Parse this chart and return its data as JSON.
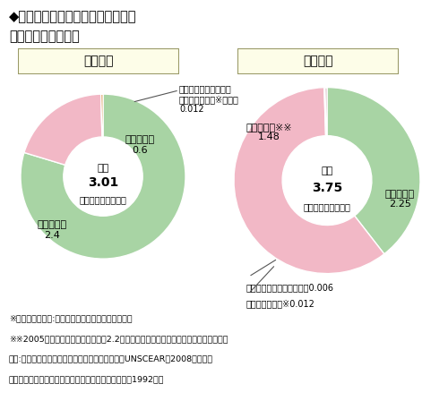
{
  "title_line1": "◆自然及び人工放射線源から受ける",
  "title_line2": "一人当たり年間線量",
  "world_label": "世界平均",
  "japan_label": "日本平均",
  "world_total_label": "合計",
  "japan_total_label": "合計",
  "world_total": "3.01",
  "japan_total": "3.75",
  "unit": "（ミリシーベルト）",
  "world_slices": [
    2.4,
    0.6,
    0.012
  ],
  "world_colors": [
    "#a8d4a4",
    "#f2b8c6",
    "#d4873c"
  ],
  "world_labels_inner": [
    "自然放射線\n2.4",
    "医療被ばく\n0.6"
  ],
  "world_other_label": "その他（職業被ばく、\nフォールアウト※など）\n0.012",
  "japan_slices": [
    1.48,
    2.25,
    0.006,
    0.012
  ],
  "japan_colors": [
    "#a8d4a4",
    "#f2b8c6",
    "#a8c8a0",
    "#c898a8"
  ],
  "japan_nat_label": "自然放射線※※\n1.48",
  "japan_med_label": "医療被ばく\n2.25",
  "japan_other_label": "その他（航空機利用など）",
  "japan_other_val": "0.006",
  "japan_fallout_label": "フォールアウト※",
  "japan_fallout_val": "0.012",
  "footnote1": "※フォールアウト:核実験による放射性降下物のこと",
  "footnote2": "※※2005年に日本分析センターから2.2ミリシーベルトという数値が公表されている。",
  "footnote3": "出典:原子放射線の影響に関する国連科学委員会（UNSCEAR）2008年報告、",
  "footnote4": "　　（財）原子力安全研究協会「生活環境放射線」（1992年）",
  "bg_color": "#ffffff",
  "box_fill": "#fdfde8",
  "box_edge": "#999966"
}
